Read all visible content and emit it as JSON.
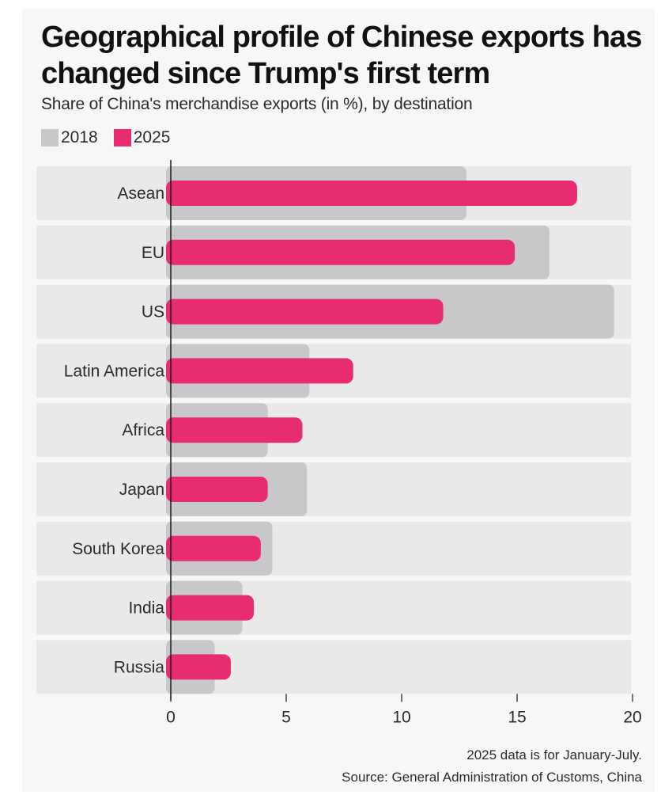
{
  "title": "Geographical profile of Chinese exports has changed since Trump's first term",
  "subtitle": "Share of China's merchandise exports (in %), by destination",
  "legend": [
    {
      "label": "2018",
      "color": "#c8c8ca"
    },
    {
      "label": "2025",
      "color": "#e82c72"
    }
  ],
  "footnote": {
    "note": "2025 data is for January-July.",
    "source": "Source: General Administration of Customs, China"
  },
  "chart_data": {
    "type": "bar",
    "orientation": "horizontal",
    "title": "Geographical profile of Chinese exports has changed since Trump's first term",
    "subtitle": "Share of China's merchandise exports (in %), by destination",
    "xlabel": "",
    "ylabel": "",
    "xlim": [
      0,
      20
    ],
    "xticks": [
      0,
      5,
      10,
      15,
      20
    ],
    "categories": [
      "Asean",
      "EU",
      "US",
      "Latin America",
      "Africa",
      "Japan",
      "South Korea",
      "India",
      "Russia"
    ],
    "series": [
      {
        "name": "2018",
        "color": "#c8c8ca",
        "values": [
          12.8,
          16.4,
          19.2,
          6.0,
          4.2,
          5.9,
          4.4,
          3.1,
          1.9
        ]
      },
      {
        "name": "2025",
        "color": "#e82c72",
        "values": [
          17.6,
          14.9,
          11.8,
          7.9,
          5.7,
          4.2,
          3.9,
          3.6,
          2.6
        ]
      }
    ]
  }
}
